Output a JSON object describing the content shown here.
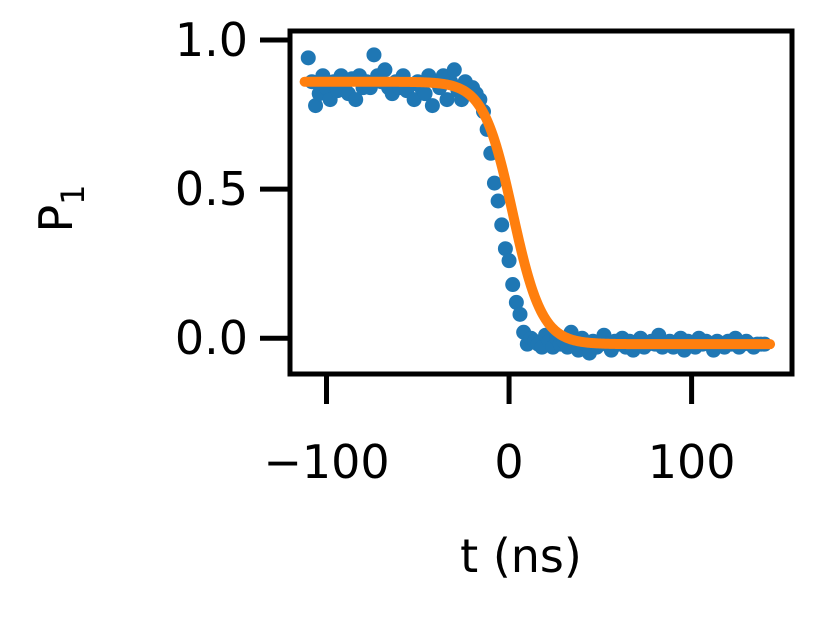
{
  "chart_data": {
    "type": "scatter",
    "xlabel": "t (ns)",
    "ylabel_main": "P",
    "ylabel_sub": "1",
    "xlim": [
      -120,
      155
    ],
    "ylim": [
      -0.12,
      1.03
    ],
    "xticks": [
      -100,
      0,
      100
    ],
    "xtick_labels": [
      "−100",
      "0",
      "100"
    ],
    "yticks": [
      0.0,
      0.5,
      1.0
    ],
    "ytick_labels": [
      "0.0",
      "0.5",
      "1.0"
    ],
    "grid": false,
    "colors": {
      "data": "#1f77b4",
      "fit": "#ff7f0e",
      "axes": "#000000"
    },
    "data_points": {
      "x": [
        -110,
        -108,
        -106,
        -104,
        -102,
        -100,
        -98,
        -96,
        -94,
        -92,
        -90,
        -88,
        -86,
        -84,
        -82,
        -80,
        -78,
        -76,
        -74,
        -72,
        -70,
        -68,
        -66,
        -64,
        -62,
        -60,
        -58,
        -56,
        -54,
        -52,
        -50,
        -48,
        -46,
        -44,
        -42,
        -40,
        -38,
        -36,
        -34,
        -32,
        -30,
        -28,
        -26,
        -24,
        -22,
        -20,
        -18,
        -16,
        -14,
        -12,
        -10,
        -8,
        -6,
        -4,
        -2,
        0,
        2,
        4,
        6,
        8,
        10,
        12,
        14,
        16,
        18,
        20,
        22,
        24,
        26,
        28,
        30,
        32,
        34,
        36,
        38,
        40,
        42,
        44,
        46,
        48,
        50,
        52,
        54,
        56,
        58,
        60,
        62,
        64,
        66,
        68,
        70,
        72,
        74,
        76,
        78,
        80,
        82,
        84,
        86,
        88,
        90,
        92,
        94,
        96,
        98,
        100,
        102,
        104,
        106,
        108,
        110,
        112,
        114,
        116,
        118,
        120,
        122,
        124,
        126,
        128,
        130,
        132,
        134,
        136,
        138,
        140
      ],
      "y": [
        0.94,
        0.86,
        0.78,
        0.82,
        0.88,
        0.84,
        0.8,
        0.86,
        0.83,
        0.88,
        0.85,
        0.82,
        0.87,
        0.8,
        0.88,
        0.84,
        0.86,
        0.84,
        0.95,
        0.88,
        0.86,
        0.9,
        0.84,
        0.82,
        0.86,
        0.84,
        0.88,
        0.83,
        0.85,
        0.8,
        0.86,
        0.84,
        0.82,
        0.88,
        0.78,
        0.86,
        0.84,
        0.88,
        0.8,
        0.86,
        0.9,
        0.83,
        0.8,
        0.86,
        0.82,
        0.84,
        0.82,
        0.8,
        0.76,
        0.7,
        0.62,
        0.52,
        0.46,
        0.38,
        0.3,
        0.26,
        0.18,
        0.12,
        0.08,
        0.02,
        -0.02,
        0.0,
        -0.01,
        -0.02,
        -0.03,
        0.01,
        -0.01,
        -0.03,
        0.0,
        -0.02,
        -0.01,
        -0.03,
        0.02,
        -0.02,
        -0.04,
        0.0,
        -0.02,
        -0.05,
        -0.01,
        -0.03,
        -0.02,
        0.01,
        -0.02,
        -0.04,
        -0.01,
        -0.02,
        0.0,
        -0.03,
        -0.01,
        -0.04,
        -0.02,
        0.0,
        -0.03,
        -0.02,
        -0.01,
        -0.02,
        0.01,
        -0.03,
        -0.02,
        -0.01,
        -0.03,
        -0.02,
        0.0,
        -0.04,
        -0.01,
        -0.02,
        -0.03,
        0.0,
        -0.02,
        -0.01,
        -0.02,
        -0.04,
        -0.01,
        -0.02,
        -0.03,
        -0.01,
        -0.02,
        0.0,
        -0.03,
        -0.02,
        -0.01,
        -0.02,
        -0.03,
        -0.02,
        -0.02,
        -0.02
      ]
    },
    "fit_curve": {
      "model": "sigmoid",
      "amplitude_high": 0.86,
      "amplitude_low": -0.02,
      "center": 2,
      "width": 8,
      "x_range": [
        -112,
        143
      ]
    }
  }
}
